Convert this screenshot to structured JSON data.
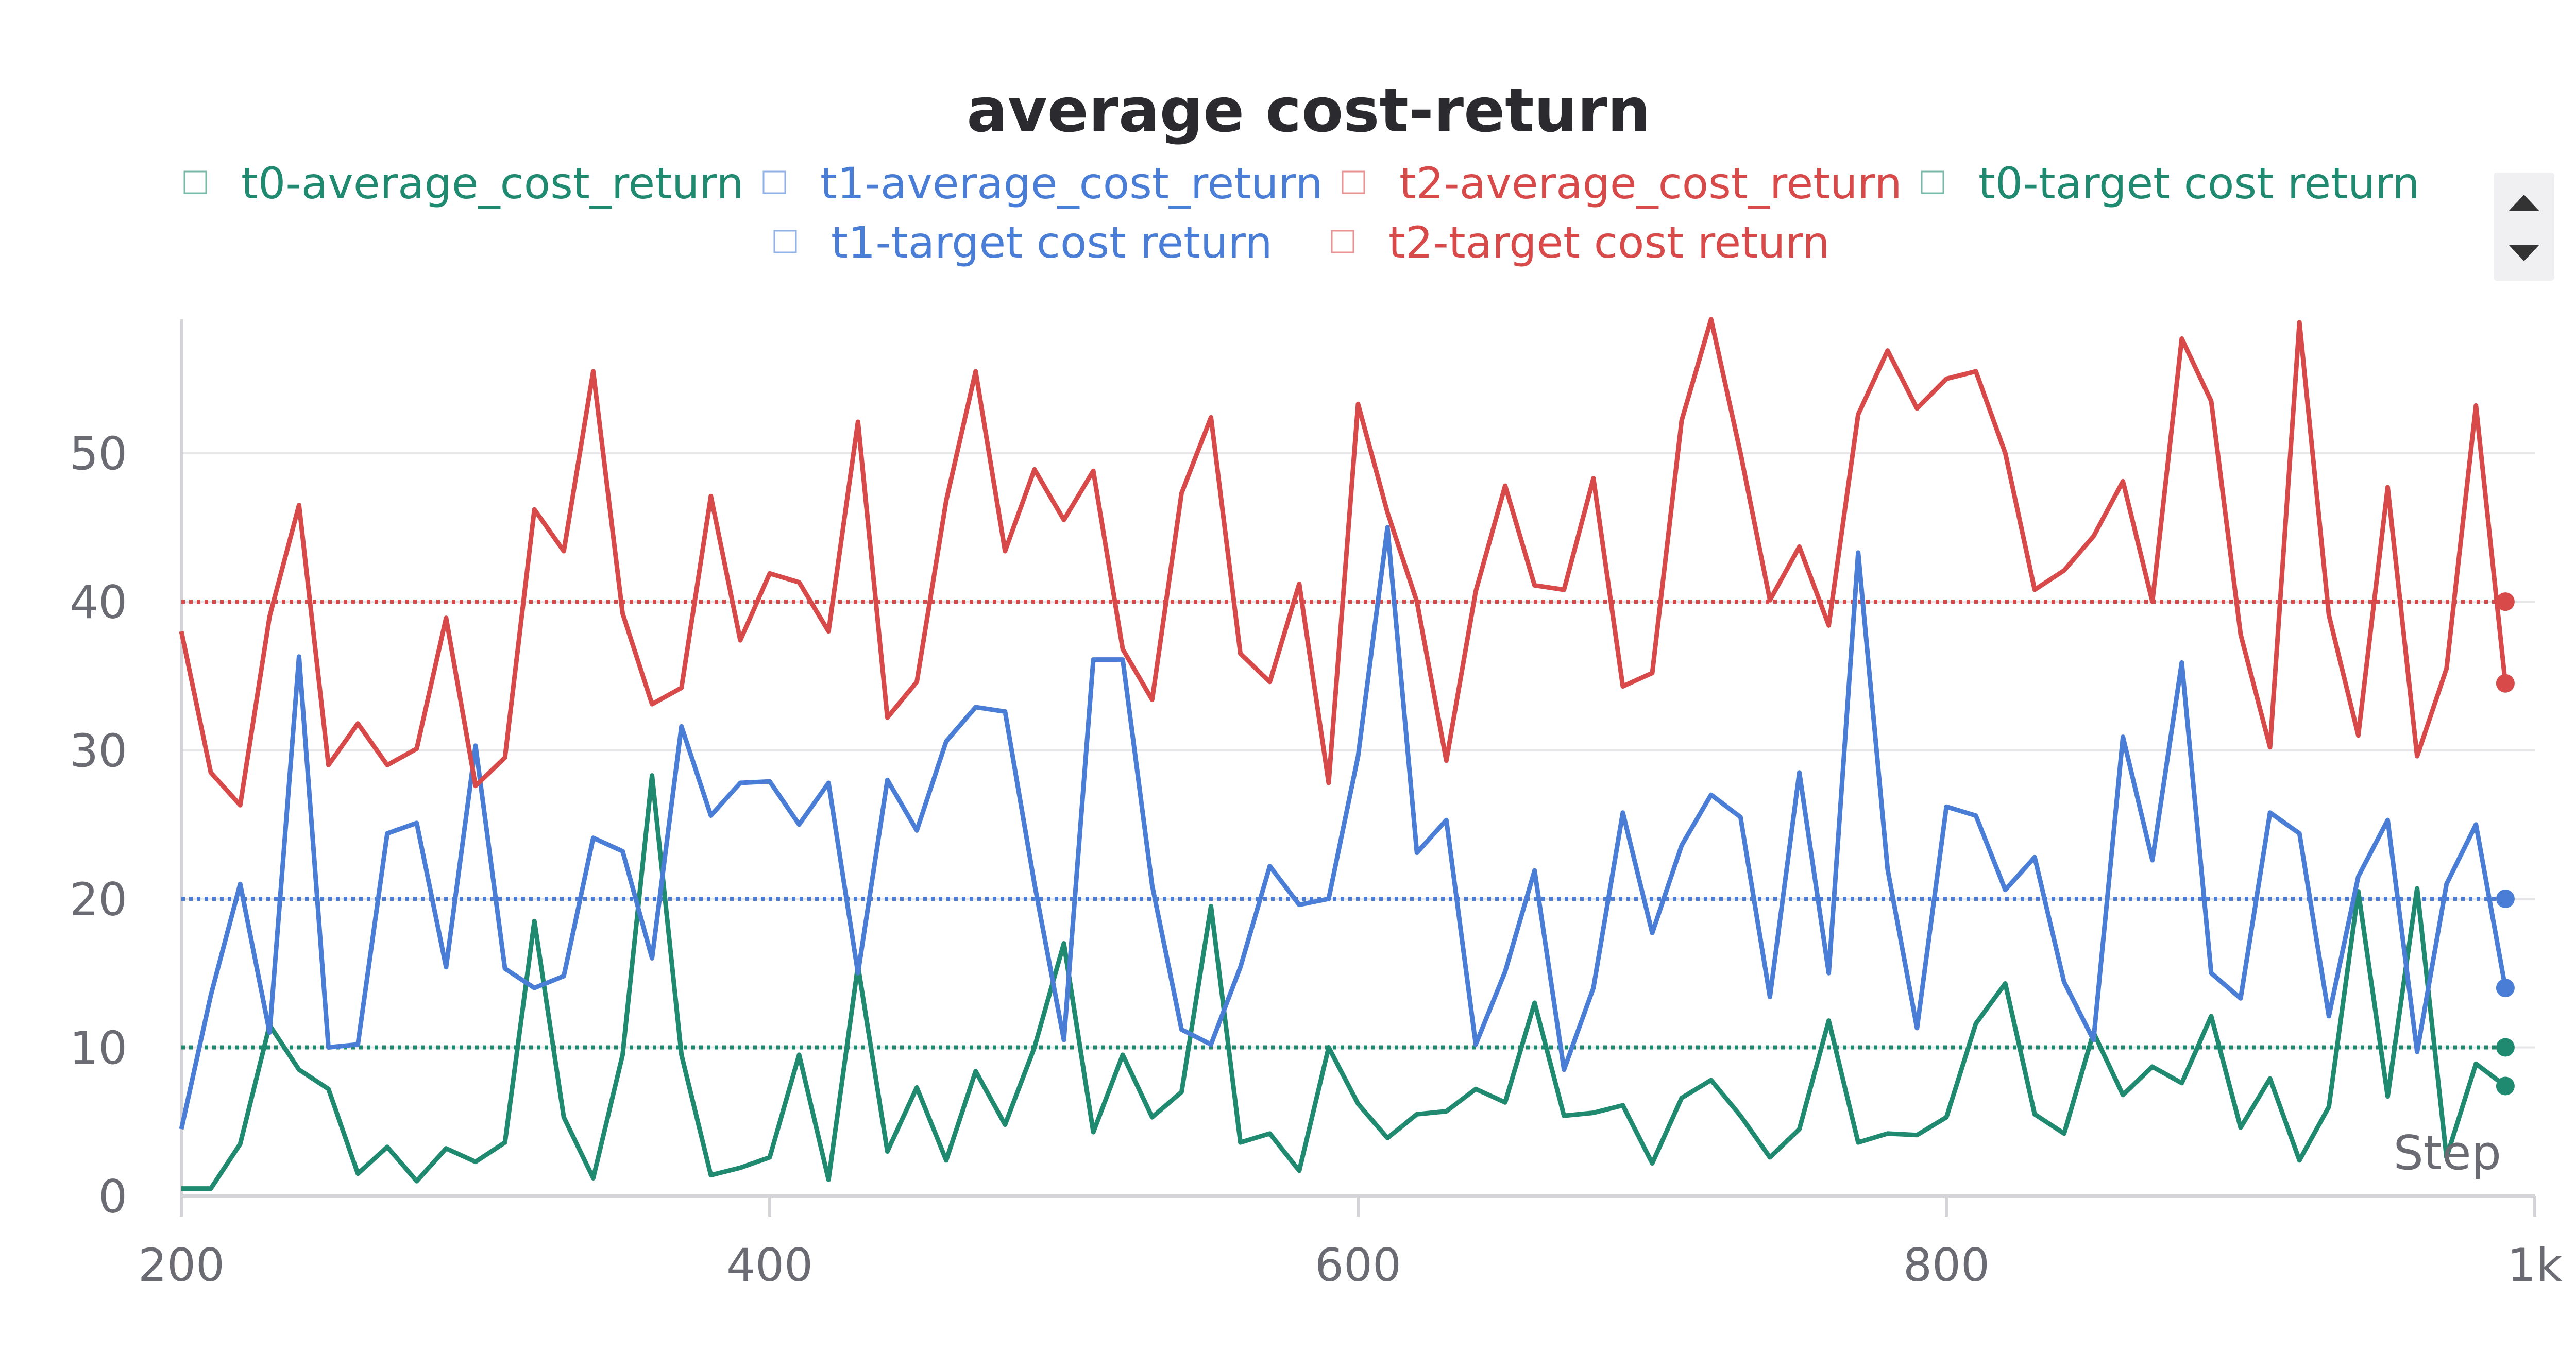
{
  "chart_data": {
    "type": "line",
    "title": "average cost-return",
    "xlabel": "Step",
    "ylabel": "",
    "xlim": [
      200,
      1000
    ],
    "ylim": [
      0,
      59
    ],
    "x_ticks": [
      "200",
      "400",
      "600",
      "800",
      "1k"
    ],
    "x_tick_values": [
      200,
      400,
      600,
      800,
      1000
    ],
    "y_ticks": [
      "0",
      "10",
      "20",
      "30",
      "40",
      "50"
    ],
    "y_tick_values": [
      0,
      10,
      20,
      30,
      40,
      50
    ],
    "grid": true,
    "legend_placement": "top",
    "x": [
      200,
      210,
      220,
      230,
      240,
      250,
      260,
      270,
      280,
      290,
      300,
      310,
      320,
      330,
      340,
      350,
      360,
      370,
      380,
      390,
      400,
      410,
      420,
      430,
      440,
      450,
      460,
      470,
      480,
      490,
      500,
      510,
      520,
      530,
      540,
      550,
      560,
      570,
      580,
      590,
      600,
      610,
      620,
      630,
      640,
      650,
      660,
      670,
      680,
      690,
      700,
      710,
      720,
      730,
      740,
      750,
      760,
      770,
      780,
      790,
      800,
      810,
      820,
      830,
      840,
      850,
      860,
      870,
      880,
      890,
      900,
      910,
      920,
      930,
      940,
      950,
      960,
      970,
      980,
      990
    ],
    "series": [
      {
        "name": "t0-average_cost_return",
        "color": "#1f8a70",
        "style": "solid",
        "values": [
          0.5,
          0.5,
          3.5,
          11.5,
          8.5,
          7.2,
          1.5,
          3.3,
          1.0,
          3.2,
          2.3,
          3.6,
          18.5,
          5.3,
          1.2,
          9.5,
          28.3,
          9.5,
          1.4,
          1.9,
          2.6,
          9.5,
          1.1,
          15.5,
          3.0,
          7.3,
          2.4,
          8.4,
          4.8,
          10.0,
          17.0,
          4.3,
          9.5,
          5.3,
          7.0,
          19.5,
          3.6,
          4.2,
          1.7,
          10.0,
          6.2,
          3.9,
          5.5,
          5.7,
          7.2,
          6.3,
          13.0,
          5.4,
          5.6,
          6.1,
          2.2,
          6.6,
          7.8,
          5.4,
          2.6,
          4.5,
          11.8,
          3.6,
          4.2,
          4.1,
          5.3,
          11.6,
          14.3,
          5.5,
          4.2,
          11.0,
          6.8,
          8.7,
          7.6,
          12.1,
          4.6,
          7.9,
          2.4,
          6.0,
          20.5,
          6.7,
          20.7,
          2.6,
          8.9,
          7.4
        ]
      },
      {
        "name": "t1-average_cost_return",
        "color": "#4a7ed6",
        "style": "solid",
        "values": [
          4.5,
          13.5,
          21.0,
          11.0,
          36.3,
          10.0,
          10.2,
          24.4,
          25.1,
          15.4,
          30.3,
          15.3,
          14.0,
          14.8,
          24.1,
          23.2,
          16.0,
          31.6,
          25.6,
          27.8,
          27.9,
          25.0,
          27.8,
          15.0,
          28.0,
          24.6,
          30.6,
          32.9,
          32.6,
          21.0,
          10.5,
          36.1,
          36.1,
          20.9,
          11.2,
          10.2,
          15.4,
          22.2,
          19.6,
          20.0,
          29.6,
          45.0,
          23.1,
          25.3,
          10.2,
          15.1,
          21.9,
          8.5,
          14.0,
          25.8,
          17.7,
          23.6,
          27.0,
          25.5,
          13.4,
          28.5,
          15.0,
          43.3,
          22.0,
          11.3,
          26.2,
          25.6,
          20.6,
          22.8,
          14.4,
          10.5,
          30.9,
          22.6,
          35.9,
          15.0,
          13.3,
          25.8,
          24.4,
          12.1,
          21.5,
          25.3,
          9.7,
          21.0,
          25.0,
          14.0
        ]
      },
      {
        "name": "t2-average_cost_return",
        "color": "#d84a4a",
        "style": "solid",
        "values": [
          38.0,
          28.5,
          26.3,
          39.0,
          46.5,
          29.0,
          31.8,
          29.0,
          30.1,
          38.9,
          27.6,
          29.5,
          46.2,
          43.4,
          55.5,
          39.2,
          33.1,
          34.2,
          47.1,
          37.4,
          41.9,
          41.3,
          38.0,
          52.1,
          32.2,
          34.6,
          46.8,
          55.5,
          43.4,
          48.9,
          45.5,
          48.8,
          36.8,
          33.4,
          47.3,
          52.4,
          36.5,
          34.6,
          41.2,
          27.8,
          53.3,
          46.0,
          40.0,
          29.3,
          40.7,
          47.8,
          41.1,
          40.8,
          48.3,
          34.3,
          35.2,
          52.2,
          59.0,
          50.0,
          40.1,
          43.7,
          38.4,
          52.6,
          56.9,
          53.0,
          55.0,
          55.5,
          50.0,
          40.8,
          42.1,
          44.4,
          48.1,
          40.0,
          57.7,
          53.5,
          37.8,
          30.2,
          58.8,
          39.1,
          31.0,
          47.7,
          29.6,
          35.5,
          53.2,
          34.5
        ]
      },
      {
        "name": "t0-target cost return",
        "color": "#1f8a70",
        "style": "dotted",
        "values": [
          10,
          10,
          10,
          10,
          10,
          10,
          10,
          10,
          10,
          10,
          10,
          10,
          10,
          10,
          10,
          10,
          10,
          10,
          10,
          10,
          10,
          10,
          10,
          10,
          10,
          10,
          10,
          10,
          10,
          10,
          10,
          10,
          10,
          10,
          10,
          10,
          10,
          10,
          10,
          10,
          10,
          10,
          10,
          10,
          10,
          10,
          10,
          10,
          10,
          10,
          10,
          10,
          10,
          10,
          10,
          10,
          10,
          10,
          10,
          10,
          10,
          10,
          10,
          10,
          10,
          10,
          10,
          10,
          10,
          10,
          10,
          10,
          10,
          10,
          10,
          10,
          10,
          10,
          10,
          10
        ]
      },
      {
        "name": "t1-target cost return",
        "color": "#4a7ed6",
        "style": "dotted",
        "values": [
          20,
          20,
          20,
          20,
          20,
          20,
          20,
          20,
          20,
          20,
          20,
          20,
          20,
          20,
          20,
          20,
          20,
          20,
          20,
          20,
          20,
          20,
          20,
          20,
          20,
          20,
          20,
          20,
          20,
          20,
          20,
          20,
          20,
          20,
          20,
          20,
          20,
          20,
          20,
          20,
          20,
          20,
          20,
          20,
          20,
          20,
          20,
          20,
          20,
          20,
          20,
          20,
          20,
          20,
          20,
          20,
          20,
          20,
          20,
          20,
          20,
          20,
          20,
          20,
          20,
          20,
          20,
          20,
          20,
          20,
          20,
          20,
          20,
          20,
          20,
          20,
          20,
          20,
          20,
          20
        ]
      },
      {
        "name": "t2-target cost return",
        "color": "#d84a4a",
        "style": "dotted",
        "values": [
          40,
          40,
          40,
          40,
          40,
          40,
          40,
          40,
          40,
          40,
          40,
          40,
          40,
          40,
          40,
          40,
          40,
          40,
          40,
          40,
          40,
          40,
          40,
          40,
          40,
          40,
          40,
          40,
          40,
          40,
          40,
          40,
          40,
          40,
          40,
          40,
          40,
          40,
          40,
          40,
          40,
          40,
          40,
          40,
          40,
          40,
          40,
          40,
          40,
          40,
          40,
          40,
          40,
          40,
          40,
          40,
          40,
          40,
          40,
          40,
          40,
          40,
          40,
          40,
          40,
          40,
          40,
          40,
          40,
          40,
          40,
          40,
          40,
          40,
          40,
          40,
          40,
          40,
          40,
          40
        ]
      }
    ]
  },
  "legend": {
    "scroll_up_icon": "triangle-up-icon",
    "scroll_down_icon": "triangle-down-icon",
    "checkbox_icon": "checkbox-icon"
  }
}
